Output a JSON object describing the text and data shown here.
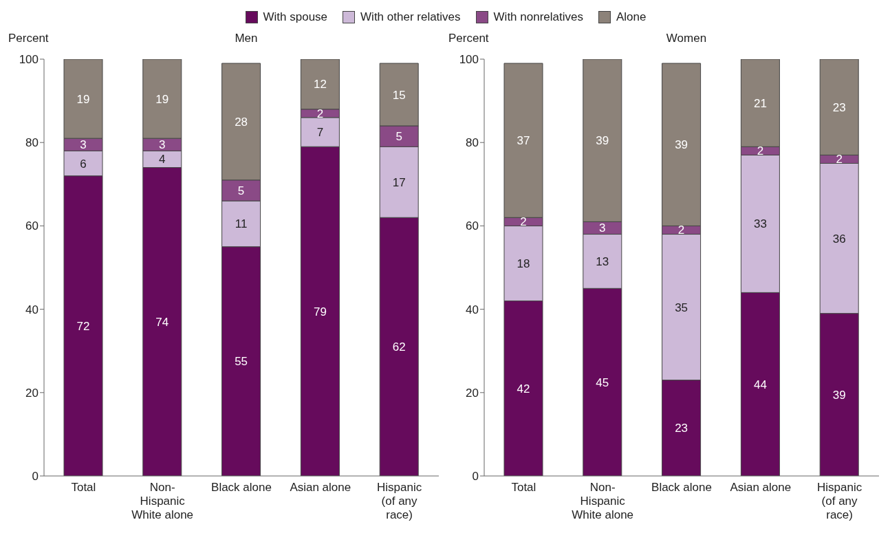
{
  "chart_data": [
    {
      "type": "bar",
      "title": "Men",
      "ylabel": "Percent",
      "categories": [
        "Total",
        "Non-Hispanic White alone",
        "Black alone",
        "Asian alone",
        "Hispanic (of any race)"
      ],
      "stacked": true,
      "data_labels": true,
      "legend": "top",
      "ylim": [
        0,
        100
      ],
      "yticks": [
        0,
        20,
        40,
        60,
        80,
        100
      ],
      "series": [
        {
          "name": "With spouse",
          "color": "#660b5c",
          "values": [
            72,
            74,
            55,
            79,
            62
          ]
        },
        {
          "name": "With other relatives",
          "color": "#cdb9d8",
          "values": [
            6,
            4,
            11,
            7,
            17
          ]
        },
        {
          "name": "With nonrelatives",
          "color": "#8a4a86",
          "values": [
            3,
            3,
            5,
            2,
            5
          ]
        },
        {
          "name": "Alone",
          "color": "#8c8279",
          "values": [
            19,
            19,
            28,
            12,
            15
          ]
        }
      ]
    },
    {
      "type": "bar",
      "title": "Women",
      "ylabel": "Percent",
      "categories": [
        "Total",
        "Non-Hispanic White alone",
        "Black alone",
        "Asian alone",
        "Hispanic (of any race)"
      ],
      "stacked": true,
      "data_labels": true,
      "ylim": [
        0,
        100
      ],
      "yticks": [
        0,
        20,
        40,
        60,
        80,
        100
      ],
      "series": [
        {
          "color": "#660b5c",
          "values": [
            42,
            45,
            23,
            44,
            39
          ]
        },
        {
          "color": "#cdb9d8",
          "values": [
            18,
            13,
            35,
            33,
            36
          ]
        },
        {
          "color": "#8a4a86",
          "values": [
            2,
            3,
            2,
            2,
            2
          ]
        },
        {
          "color": "#8c8279",
          "values": [
            37,
            39,
            39,
            21,
            23
          ]
        }
      ]
    }
  ]
}
